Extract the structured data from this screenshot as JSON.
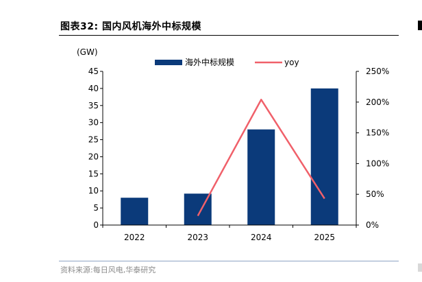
{
  "figure": {
    "title": "图表32:  国内风机海外中标规模",
    "source": "资料来源:每日风电,华泰研究"
  },
  "colors": {
    "bar": "#0b3a7a",
    "line": "#f0606a",
    "axis": "#000000",
    "rule_bottom": "#8da4c4"
  },
  "chart_data": {
    "type": "bar",
    "categories": [
      "2022",
      "2023",
      "2024",
      "2025"
    ],
    "series": [
      {
        "name": "海外中标规模",
        "type": "bar",
        "axis": "left",
        "values": [
          8,
          9.2,
          28,
          40
        ]
      },
      {
        "name": "yoy",
        "type": "line",
        "axis": "right",
        "values": [
          null,
          0.15,
          2.04,
          0.43
        ]
      }
    ],
    "y_left": {
      "label": "(GW)",
      "range": [
        0,
        45
      ],
      "ticks": [
        "0",
        "5",
        "10",
        "15",
        "20",
        "25",
        "30",
        "35",
        "40",
        "45"
      ]
    },
    "y_right": {
      "range": [
        0,
        2.5
      ],
      "ticks": [
        "0%",
        "50%",
        "100%",
        "150%",
        "200%",
        "250%"
      ]
    },
    "legend_position": "top-center",
    "grid": false
  }
}
